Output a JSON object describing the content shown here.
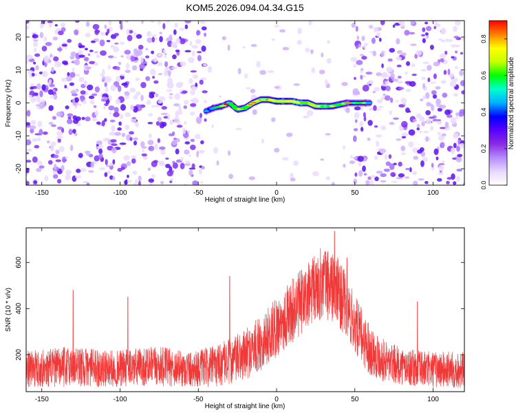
{
  "title": "KOM5.2026.094.04.34.G15",
  "colors": {
    "snr_line": "#f03a3a",
    "frame": "#000000",
    "colormap": [
      "#ffffff",
      "#e8d8ff",
      "#b58cff",
      "#8a2be2",
      "#5a00ff",
      "#0000ff",
      "#00b0ff",
      "#00ffd0",
      "#00ff00",
      "#c8ff00",
      "#ffff00",
      "#ff8000",
      "#ff0000"
    ]
  },
  "chart_data": [
    {
      "type": "heatmap",
      "title": "KOM5.2026.094.04.34.G15",
      "xlabel": "Height of straight line (km)",
      "ylabel": "Frequency (Hz)",
      "xlim": [
        -160,
        120
      ],
      "ylim": [
        -25,
        25
      ],
      "xticks": [
        -150,
        -100,
        -50,
        0,
        50,
        100
      ],
      "yticks": [
        -20,
        -10,
        0,
        10,
        20
      ],
      "colorbar": {
        "label": "Normalized spectral amplitude",
        "range": [
          0.0,
          0.9
        ],
        "ticks": [
          "0.0",
          "0.2",
          "0.4",
          "0.6",
          "0.8"
        ]
      },
      "ridge": {
        "points": [
          [
            -45,
            -2.5
          ],
          [
            -40,
            -1.5
          ],
          [
            -35,
            -1
          ],
          [
            -30,
            0
          ],
          [
            -25,
            -2
          ],
          [
            -20,
            -1.5
          ],
          [
            -15,
            0
          ],
          [
            -10,
            1
          ],
          [
            -5,
            1
          ],
          [
            0,
            0.5
          ],
          [
            5,
            0.5
          ],
          [
            10,
            0.5
          ],
          [
            15,
            0
          ],
          [
            20,
            0
          ],
          [
            25,
            -1
          ],
          [
            30,
            -1
          ],
          [
            35,
            -1
          ],
          [
            40,
            -0.5
          ],
          [
            45,
            0
          ],
          [
            50,
            0
          ],
          [
            55,
            0
          ],
          [
            60,
            0
          ]
        ],
        "peak_amplitude": 0.88
      },
      "background_noise": {
        "strong_ranges_km": [
          [
            -160,
            -45
          ],
          [
            50,
            120
          ]
        ],
        "weak_range_km": [
          -45,
          50
        ],
        "amplitude": "0.05-0.3"
      }
    },
    {
      "type": "line",
      "xlabel": "Height of straight line (km)",
      "ylabel": "SNR (10 * v/v)",
      "xlim": [
        -160,
        120
      ],
      "ylim": [
        40,
        750
      ],
      "xticks": [
        -150,
        -100,
        -50,
        0,
        50,
        100
      ],
      "yticks": [
        200,
        400,
        600
      ],
      "series": [
        {
          "name": "SNR",
          "envelope_x": [
            -160,
            -150,
            -140,
            -130,
            -120,
            -110,
            -100,
            -90,
            -80,
            -70,
            -60,
            -50,
            -40,
            -30,
            -20,
            -10,
            0,
            10,
            20,
            30,
            40,
            50,
            60,
            70,
            80,
            90,
            100,
            110,
            120
          ],
          "envelope_mean": [
            140,
            140,
            145,
            150,
            145,
            140,
            140,
            145,
            150,
            148,
            140,
            140,
            150,
            170,
            200,
            250,
            320,
            390,
            450,
            520,
            470,
            330,
            220,
            170,
            150,
            140,
            135,
            135,
            135
          ],
          "noise_amplitude": [
            80,
            80,
            85,
            90,
            85,
            80,
            80,
            85,
            85,
            85,
            80,
            80,
            90,
            100,
            110,
            120,
            130,
            140,
            150,
            160,
            150,
            130,
            110,
            90,
            80,
            80,
            80,
            80,
            80
          ],
          "spikes": [
            [
              -130,
              480
            ],
            [
              -95,
              450
            ],
            [
              -30,
              540
            ],
            [
              37,
              735
            ],
            [
              45,
              620
            ],
            [
              90,
              430
            ]
          ]
        }
      ]
    }
  ]
}
